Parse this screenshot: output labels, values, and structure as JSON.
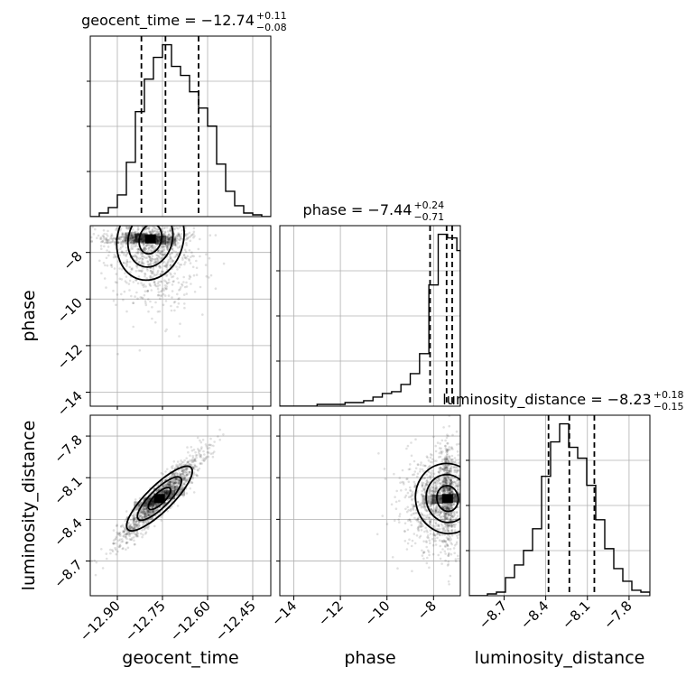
{
  "chart_data": {
    "type": "corner",
    "parameters": [
      "geocent_time",
      "phase",
      "luminosity_distance"
    ],
    "titles": [
      {
        "param": "geocent_time",
        "prefix": "geocent_time = ",
        "median": "−12.74",
        "plus": "+0.11",
        "minus": "−0.08"
      },
      {
        "param": "phase",
        "prefix": "phase = ",
        "median": "−7.44",
        "plus": "+0.24",
        "minus": "−0.71"
      },
      {
        "param": "luminosity_distance",
        "prefix": "luminosity_distance = ",
        "median": "−8.23",
        "plus": "+0.18",
        "minus": "−0.15"
      }
    ],
    "axes": {
      "geocent_time": {
        "range": [
          -12.99,
          -12.39
        ],
        "ticks": [
          -12.9,
          -12.75,
          -12.6,
          -12.45
        ],
        "tick_labels": [
          "−12.90",
          "−12.75",
          "−12.60",
          "−12.45"
        ],
        "quantiles": [
          -12.82,
          -12.74,
          -12.63
        ]
      },
      "phase": {
        "range": [
          -14.6,
          -6.85
        ],
        "ticks": [
          -14,
          -12,
          -10,
          -8
        ],
        "tick_labels": [
          "−14",
          "−12",
          "−10",
          "−8"
        ],
        "quantiles": [
          -8.15,
          -7.44,
          -7.2
        ]
      },
      "luminosity_distance": {
        "range": [
          -8.95,
          -7.65
        ],
        "ticks": [
          -8.7,
          -8.4,
          -8.1,
          -7.8
        ],
        "tick_labels": [
          "−8.7",
          "−8.4",
          "−8.1",
          "−7.8"
        ],
        "quantiles": [
          -8.38,
          -8.23,
          -8.05
        ]
      }
    },
    "histograms": {
      "geocent_time": {
        "bin_edges": [
          -12.99,
          -12.96,
          -12.93,
          -12.9,
          -12.87,
          -12.84,
          -12.81,
          -12.78,
          -12.75,
          -12.72,
          -12.69,
          -12.66,
          -12.63,
          -12.6,
          -12.57,
          -12.54,
          -12.51,
          -12.48,
          -12.45,
          -12.42,
          -12.39
        ],
        "counts": [
          0,
          2,
          5,
          12,
          30,
          58,
          76,
          88,
          95,
          83,
          78,
          69,
          60,
          50,
          29,
          14,
          6,
          2,
          1,
          0
        ]
      },
      "phase": {
        "bin_edges": [
          -14.6,
          -14.2,
          -13.8,
          -13.4,
          -13.0,
          -12.6,
          -12.2,
          -11.8,
          -11.4,
          -11.0,
          -10.6,
          -10.2,
          -9.8,
          -9.4,
          -9.0,
          -8.6,
          -8.2,
          -7.8,
          -7.4,
          -7.0,
          -6.85
        ],
        "counts": [
          0,
          0,
          0,
          0,
          1,
          1,
          1,
          2,
          2,
          3,
          5,
          7,
          8,
          12,
          18,
          29,
          67,
          95,
          93,
          86
        ]
      },
      "luminosity_distance": {
        "bin_edges": [
          -8.95,
          -8.885,
          -8.82,
          -8.755,
          -8.69,
          -8.625,
          -8.56,
          -8.495,
          -8.43,
          -8.365,
          -8.3,
          -8.235,
          -8.17,
          -8.105,
          -8.04,
          -7.975,
          -7.91,
          -7.845,
          -7.78,
          -7.715,
          -7.65
        ],
        "counts": [
          0,
          0,
          1,
          2,
          10,
          17,
          25,
          37,
          66,
          85,
          95,
          82,
          76,
          61,
          42,
          26,
          15,
          8,
          3,
          2
        ]
      }
    },
    "correlations": {
      "phase_vs_geocent_time": {
        "center": [
          -12.79,
          -7.42
        ],
        "spread": [
          0.07,
          1.3
        ],
        "corr": -0.2
      },
      "luminosity_distance_vs_geocent_time": {
        "center": [
          -12.76,
          -8.25
        ],
        "spread": [
          0.07,
          0.16
        ],
        "corr": 0.93
      },
      "luminosity_distance_vs_phase": {
        "center": [
          -7.4,
          -8.25
        ],
        "spread": [
          0.9,
          0.18
        ],
        "corr": 0.15
      }
    },
    "contour_levels": [
      0.5,
      1.0,
      1.5
    ],
    "grid": true
  }
}
